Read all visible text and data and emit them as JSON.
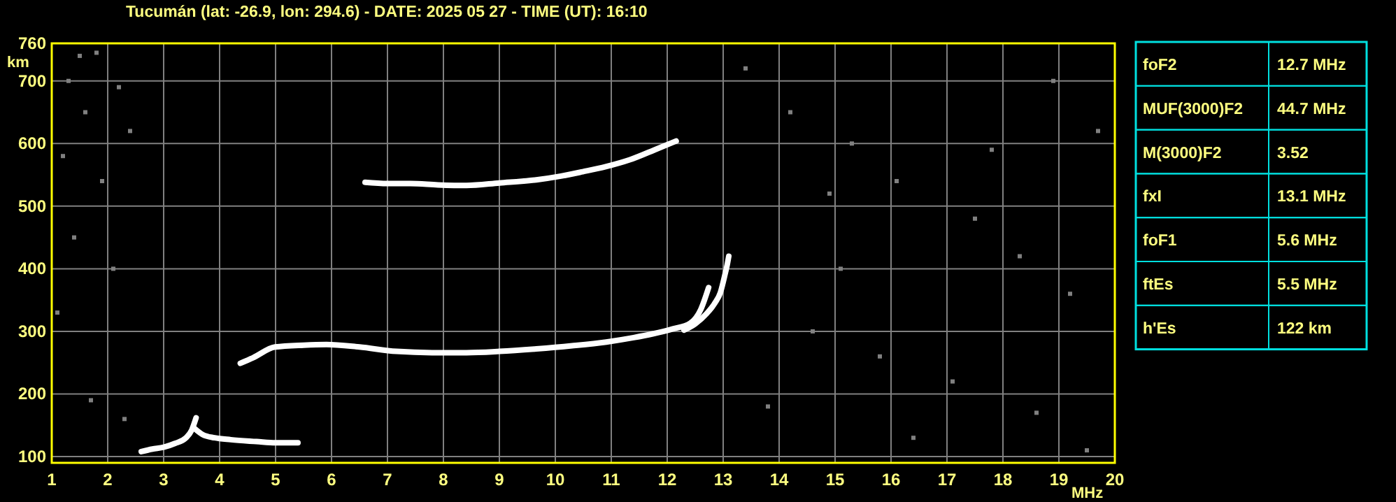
{
  "chart_data": [
    {
      "type": "line",
      "title": "Tucumán (lat: -26.9, lon: 294.6) - DATE: 2025 05 27 - TIME (UT): 16:10",
      "xlabel": "MHz",
      "ylabel": "km",
      "xlim": [
        1,
        20
      ],
      "xticks": [
        1,
        2,
        3,
        4,
        5,
        6,
        7,
        8,
        9,
        10,
        11,
        12,
        13,
        14,
        15,
        16,
        17,
        18,
        19,
        20
      ],
      "ylim": [
        90,
        760
      ],
      "yticks": [
        100,
        200,
        300,
        400,
        500,
        600,
        700,
        760
      ],
      "grid": true,
      "marker": "none",
      "line_style": "solid",
      "series": [
        {
          "color": "#ffffff",
          "x": [
            4.37,
            4.6,
            4.99,
            5.5,
            5.91,
            6.5,
            7.16,
            7.8,
            8.41,
            9.0,
            9.66,
            10.3,
            10.91,
            11.4,
            11.74,
            12.1,
            12.41,
            12.6,
            12.74
          ],
          "values": [
            249,
            258,
            275,
            278,
            279,
            275,
            268,
            266,
            266,
            268,
            272,
            277,
            283,
            290,
            296,
            304,
            313,
            335,
            370
          ]
        },
        {
          "color": "#ffffff",
          "x": [
            12.3,
            12.5,
            12.7,
            12.85,
            12.95,
            13.03,
            13.08,
            13.1
          ],
          "values": [
            302,
            312,
            328,
            345,
            362,
            390,
            410,
            420
          ]
        },
        {
          "color": "#ffffff",
          "x": [
            6.6,
            7.0,
            7.41,
            7.9,
            8.41,
            9.0,
            9.66,
            10.1,
            10.49,
            10.9,
            11.33,
            11.83,
            12.16
          ],
          "values": [
            538,
            536,
            536,
            534,
            533,
            537,
            542,
            548,
            555,
            563,
            574,
            592,
            604
          ]
        },
        {
          "color": "#ffffff",
          "x": [
            2.6,
            2.8,
            3.0,
            3.2,
            3.4,
            3.5,
            3.58
          ],
          "values": [
            108,
            112,
            115,
            121,
            130,
            142,
            162
          ]
        },
        {
          "color": "#ffffff",
          "x": [
            3.55,
            3.7,
            3.91,
            4.2,
            4.66,
            5.0,
            5.4
          ],
          "values": [
            145,
            135,
            130,
            127,
            124,
            122,
            122
          ]
        },
        {
          "type": "scatter",
          "marker": "square",
          "color": "#808080",
          "x": [
            1.5,
            1.8,
            1.3,
            2.2,
            1.6,
            2.4,
            1.2,
            1.9,
            1.4,
            2.1,
            1.1,
            1.7,
            2.3,
            13.4,
            14.2,
            15.3,
            16.1,
            17.5,
            18.3,
            19.2,
            14.6,
            15.8,
            17.1,
            18.6,
            16.4,
            19.5,
            13.8,
            15.1,
            18.9,
            19.7,
            17.8,
            14.9
          ],
          "values": [
            740,
            745,
            700,
            690,
            650,
            620,
            580,
            540,
            450,
            400,
            330,
            190,
            160,
            720,
            650,
            600,
            540,
            480,
            420,
            360,
            300,
            260,
            220,
            170,
            130,
            110,
            180,
            400,
            700,
            620,
            590,
            520
          ]
        }
      ]
    },
    {
      "type": "other",
      "categories": [
        "foF2",
        "MUF(3000)F2",
        "M(3000)F2",
        "fxI",
        "foF1",
        "ftEs",
        "h'Es"
      ],
      "value_labels": [
        "12.7 MHz",
        "44.7 MHz",
        "3.52",
        "13.1 MHz",
        "5.6 MHz",
        "5.5 MHz",
        "122 km"
      ]
    }
  ]
}
